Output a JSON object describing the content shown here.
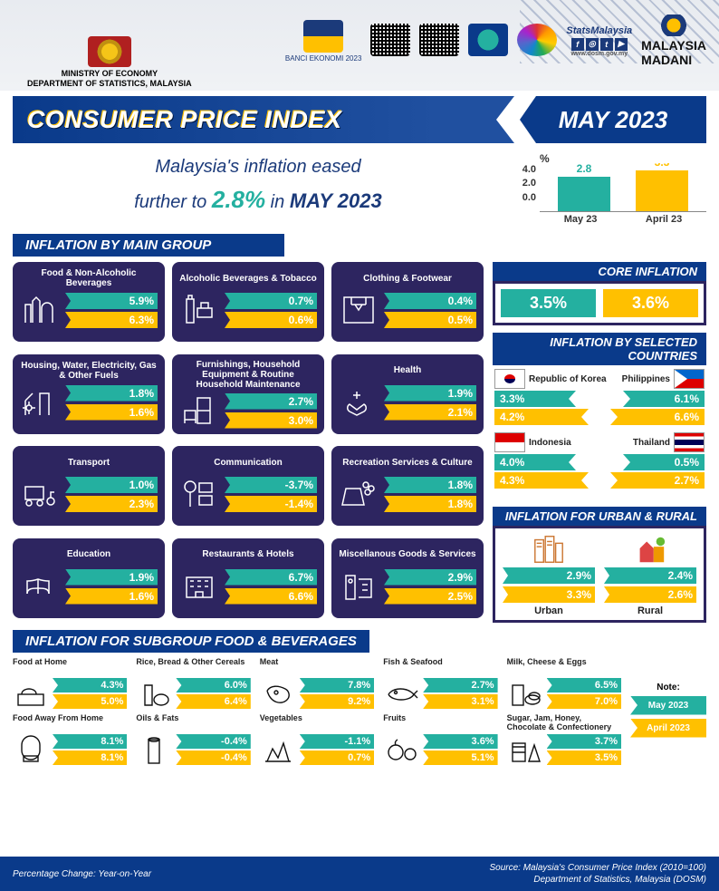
{
  "colors": {
    "teal": "#24b0a0",
    "gold": "#ffc000",
    "navy": "#0a3a8a",
    "purple": "#2d2560"
  },
  "header": {
    "ministry_line1": "MINISTRY OF ECONOMY",
    "ministry_line2": "DEPARTMENT OF STATISTICS, MALAYSIA",
    "banci": "BANCI EKONOMI 2023",
    "stats": "StatsMalaysia",
    "stats_url": "www.dosm.gov.my",
    "madani_l1": "MALAYSIA",
    "madani_l2": "MADANI"
  },
  "title": {
    "left": "CONSUMER PRICE INDEX",
    "right": "MAY 2023"
  },
  "headline": {
    "l1": "Malaysia's inflation eased",
    "l2a": "further to ",
    "pct": "2.8%",
    "l2b": " in ",
    "month": "MAY 2023"
  },
  "minichart": {
    "unit": "%",
    "ymax": "4.0",
    "ymid": "2.0",
    "ymin": "0.0",
    "bars": [
      {
        "label": "May 23",
        "value": "2.8",
        "h": 38,
        "color": "#24b0a0"
      },
      {
        "label": "April 23",
        "value": "3.3",
        "h": 45,
        "color": "#ffc000"
      }
    ]
  },
  "sections": {
    "main": "INFLATION BY MAIN GROUP",
    "core": "CORE INFLATION",
    "countries": "INFLATION BY SELECTED COUNTRIES",
    "urbanrural": "INFLATION FOR URBAN & RURAL",
    "sub": "INFLATION FOR SUBGROUP FOOD & BEVERAGES"
  },
  "core": {
    "may": "3.5%",
    "apr": "3.6%"
  },
  "categories": [
    {
      "name": "Food & Non-Alcoholic Beverages",
      "may": "5.9%",
      "apr": "6.3%",
      "icon": "food"
    },
    {
      "name": "Alcoholic Beverages & Tobacco",
      "may": "0.7%",
      "apr": "0.6%",
      "icon": "alcohol"
    },
    {
      "name": "Clothing & Footwear",
      "may": "0.4%",
      "apr": "0.5%",
      "icon": "clothing"
    },
    {
      "name": "Housing, Water, Electricity, Gas & Other Fuels",
      "may": "1.8%",
      "apr": "1.6%",
      "icon": "housing"
    },
    {
      "name": "Furnishings, Household Equipment & Routine Household Maintenance",
      "may": "2.7%",
      "apr": "3.0%",
      "icon": "furnish"
    },
    {
      "name": "Health",
      "may": "1.9%",
      "apr": "2.1%",
      "icon": "health"
    },
    {
      "name": "Transport",
      "may": "1.0%",
      "apr": "2.3%",
      "icon": "transport"
    },
    {
      "name": "Communication",
      "may": "-3.7%",
      "apr": "-1.4%",
      "icon": "comm"
    },
    {
      "name": "Recreation Services & Culture",
      "may": "1.8%",
      "apr": "1.8%",
      "icon": "recreation"
    },
    {
      "name": "Education",
      "may": "1.9%",
      "apr": "1.6%",
      "icon": "education"
    },
    {
      "name": "Restaurants & Hotels",
      "may": "6.7%",
      "apr": "6.6%",
      "icon": "hotel"
    },
    {
      "name": "Miscellanous Goods & Services",
      "may": "2.9%",
      "apr": "2.5%",
      "icon": "misc"
    }
  ],
  "countries": [
    {
      "name": "Republic of Korea",
      "may": "3.3%",
      "apr": "4.2%",
      "code": "kr"
    },
    {
      "name": "Philippines",
      "may": "6.1%",
      "apr": "6.6%",
      "code": "ph"
    },
    {
      "name": "Indonesia",
      "may": "4.0%",
      "apr": "4.3%",
      "code": "id"
    },
    {
      "name": "Thailand",
      "may": "0.5%",
      "apr": "2.7%",
      "code": "th"
    }
  ],
  "urbanrural": {
    "urban": {
      "label": "Urban",
      "may": "2.9%",
      "apr": "3.3%"
    },
    "rural": {
      "label": "Rural",
      "may": "2.4%",
      "apr": "2.6%"
    }
  },
  "subgroups": [
    {
      "name": "Food at Home",
      "may": "4.3%",
      "apr": "5.0%"
    },
    {
      "name": "Rice, Bread & Other Cereals",
      "may": "6.0%",
      "apr": "6.4%"
    },
    {
      "name": "Meat",
      "may": "7.8%",
      "apr": "9.2%"
    },
    {
      "name": "Fish & Seafood",
      "may": "2.7%",
      "apr": "3.1%"
    },
    {
      "name": "Milk, Cheese & Eggs",
      "may": "6.5%",
      "apr": "7.0%"
    },
    {
      "name": "Food Away From Home",
      "may": "8.1%",
      "apr": "8.1%"
    },
    {
      "name": "Oils & Fats",
      "may": "-0.4%",
      "apr": "-0.4%"
    },
    {
      "name": "Vegetables",
      "may": "-1.1%",
      "apr": "0.7%"
    },
    {
      "name": "Fruits",
      "may": "3.6%",
      "apr": "5.1%"
    },
    {
      "name": "Sugar, Jam, Honey, Chocolate & Confectionery",
      "may": "3.7%",
      "apr": "3.5%"
    }
  ],
  "note": {
    "h": "Note:",
    "may": "May 2023",
    "apr": "April 2023"
  },
  "footer": {
    "left": "Percentage Change: Year-on-Year",
    "r1": "Source: Malaysia's Consumer Price Index (2010=100)",
    "r2": "Department of Statistics, Malaysia (DOSM)"
  }
}
